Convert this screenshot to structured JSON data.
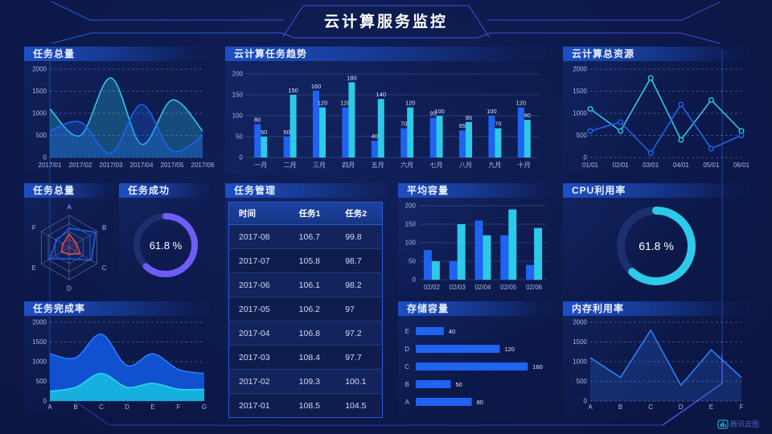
{
  "header": {
    "title": "云计算服务监控"
  },
  "footer": {
    "brand": "腾讯云图"
  },
  "colors": {
    "blue": "#1f63f0",
    "cyan": "#2cc9e8",
    "purple": "#6f5cf5",
    "red": "#f0483c",
    "track": "#1c2f6e",
    "axis_text": "#a9bce8"
  },
  "gauges": {
    "task_success": {
      "title": "任务成功",
      "value": 61.8,
      "label": "61.8 %",
      "color": "#6f5cf5"
    },
    "cpu": {
      "title": "CPU利用率",
      "value": 61.8,
      "label": "61.8 %",
      "color": "#2cc9e8"
    }
  },
  "table": {
    "title": "任务管理",
    "headers": [
      "时间",
      "任务1",
      "任务2"
    ],
    "rows": [
      [
        "2017-08",
        "106.7",
        "99.8"
      ],
      [
        "2017-07",
        "105.8",
        "98.7"
      ],
      [
        "2017-06",
        "106.1",
        "98.2"
      ],
      [
        "2017-05",
        "106.2",
        "97"
      ],
      [
        "2017-04",
        "106.8",
        "97.2"
      ],
      [
        "2017-03",
        "108.4",
        "97.7"
      ],
      [
        "2017-02",
        "109.3",
        "100.1"
      ],
      [
        "2017-01",
        "108.5",
        "104.5"
      ]
    ]
  },
  "chart_data": [
    {
      "id": "task-total-line",
      "title": "任务总量",
      "type": "line",
      "smooth": true,
      "x": [
        "2017/01",
        "2017/02",
        "2017/03",
        "2017/04",
        "2017/05",
        "2017/06"
      ],
      "series": [
        {
          "name": "cyan-series",
          "color": "#2cc9e8",
          "values": [
            1100,
            500,
            1800,
            300,
            1300,
            600
          ],
          "fill": true,
          "fillOpacity": 0.28
        },
        {
          "name": "blue-series",
          "color": "#1f63f0",
          "values": [
            600,
            800,
            100,
            1200,
            150,
            500
          ],
          "fill": true,
          "fillOpacity": 0.28
        }
      ],
      "ylim": [
        0,
        2000
      ],
      "yticks": [
        0,
        500,
        1000,
        1500,
        2000
      ],
      "grid": "dashed",
      "legend": "none"
    },
    {
      "id": "task-trend",
      "title": "云计算任务趋势",
      "type": "bar",
      "categories": [
        "一月",
        "二月",
        "三月",
        "四月",
        "五月",
        "六月",
        "七月",
        "八月",
        "九月",
        "十月"
      ],
      "series": [
        {
          "name": "blue-series",
          "color": "#1f63f0",
          "values": [
            80,
            50,
            160,
            120,
            40,
            70,
            95,
            65,
            100,
            120
          ]
        },
        {
          "name": "cyan-series",
          "color": "#2cc9e8",
          "values": [
            50,
            150,
            120,
            180,
            140,
            120,
            100,
            85,
            70,
            90
          ]
        }
      ],
      "ylim": [
        0,
        200
      ],
      "yticks": [
        0,
        50,
        100,
        150,
        200
      ],
      "value_labels": true,
      "grid": "solid",
      "legend": "none"
    },
    {
      "id": "total-resources",
      "title": "云计算总资源",
      "type": "line",
      "smooth": false,
      "markers": true,
      "x": [
        "01/01",
        "02/01",
        "03/01",
        "04/01",
        "05/01",
        "06/01"
      ],
      "series": [
        {
          "name": "cyan-series",
          "color": "#2cc9e8",
          "values": [
            1100,
            600,
            1800,
            400,
            1300,
            600
          ]
        },
        {
          "name": "blue-series",
          "color": "#1f63f0",
          "values": [
            600,
            800,
            100,
            1200,
            200,
            500
          ]
        }
      ],
      "ylim": [
        0,
        2000
      ],
      "yticks": [
        0,
        500,
        1000,
        1500,
        2000
      ],
      "grid": "dashed",
      "legend": "none"
    },
    {
      "id": "task-radar",
      "title": "任务总量",
      "type": "radar",
      "axes": [
        "A",
        "B",
        "C",
        "D",
        "E",
        "F"
      ],
      "max": 100,
      "series": [
        {
          "name": "blue-polygon",
          "color": "#1f63f0",
          "values": [
            60,
            95,
            80,
            35,
            70,
            45
          ]
        },
        {
          "name": "red-polygon",
          "color": "#f0483c",
          "values": [
            42,
            26,
            40,
            20,
            28,
            22
          ]
        }
      ]
    },
    {
      "id": "avg-capacity",
      "title": "平均容量",
      "type": "bar",
      "categories": [
        "02/02",
        "02/03",
        "02/04",
        "02/05",
        "02/06"
      ],
      "series": [
        {
          "name": "blue-series",
          "color": "#1f63f0",
          "values": [
            80,
            50,
            160,
            120,
            40
          ]
        },
        {
          "name": "cyan-series",
          "color": "#2cc9e8",
          "values": [
            50,
            150,
            120,
            190,
            140
          ]
        }
      ],
      "ylim": [
        0,
        200
      ],
      "yticks": [
        0,
        50,
        100,
        150,
        200
      ],
      "value_labels": false,
      "grid": "solid",
      "legend": "none"
    },
    {
      "id": "task-completion",
      "title": "任务完成率",
      "type": "area",
      "smooth": true,
      "x": [
        "A",
        "B",
        "C",
        "D",
        "E",
        "F",
        "G"
      ],
      "series": [
        {
          "name": "blue-area",
          "color": "#1254d8",
          "line": "#2e7cf6",
          "values": [
            1200,
            1100,
            1700,
            900,
            1200,
            800,
            700
          ],
          "fill": true,
          "fillOpacity": 0.95
        },
        {
          "name": "cyan-area",
          "color": "#17b4de",
          "line": "#2fd4f0",
          "values": [
            250,
            350,
            700,
            350,
            450,
            300,
            300
          ],
          "fill": true,
          "fillOpacity": 0.95
        }
      ],
      "ylim": [
        0,
        2000
      ],
      "yticks": [
        0,
        500,
        1000,
        1500,
        2000
      ],
      "grid": "dashed",
      "legend": "none"
    },
    {
      "id": "storage",
      "title": "存储容量",
      "type": "hbar",
      "categories": [
        "E",
        "D",
        "C",
        "B",
        "A"
      ],
      "values": [
        40,
        120,
        160,
        50,
        80
      ],
      "color": "#1f63f0",
      "xlim": [
        0,
        170
      ],
      "value_labels": true
    },
    {
      "id": "memory",
      "title": "内存利用率",
      "type": "line",
      "smooth": false,
      "x": [
        "A",
        "B",
        "C",
        "D",
        "E",
        "F"
      ],
      "series": [
        {
          "name": "blue-series",
          "color": "#2e7cf6",
          "values": [
            1100,
            600,
            1800,
            400,
            1300,
            600
          ],
          "fill": true,
          "fillOpacity": 0.22
        }
      ],
      "ylim": [
        0,
        2000
      ],
      "yticks": [
        0,
        500,
        1000,
        1500,
        2000
      ],
      "grid": "dashed",
      "legend": "none"
    }
  ]
}
